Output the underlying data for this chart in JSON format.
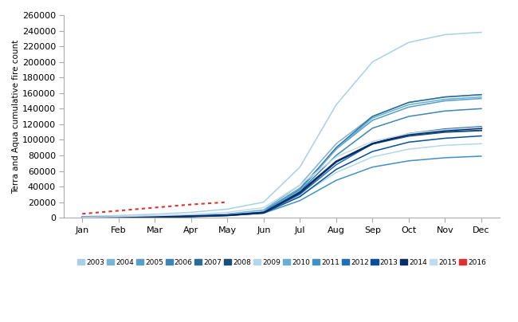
{
  "ylabel": "Terra and Aqua cumulative fire count",
  "ylim": [
    0,
    260000
  ],
  "yticks": [
    0,
    20000,
    40000,
    60000,
    80000,
    100000,
    120000,
    140000,
    160000,
    180000,
    200000,
    220000,
    240000,
    260000
  ],
  "months": [
    "Jan",
    "Feb",
    "Mar",
    "Apr",
    "May",
    "Jun",
    "Jul",
    "Aug",
    "Sep",
    "Oct",
    "Nov",
    "Dec"
  ],
  "year_styles": {
    "2003": {
      "color": "#a8d0e8",
      "lw": 1.1,
      "ls": "solid"
    },
    "2004": {
      "color": "#78b4d4",
      "lw": 1.1,
      "ls": "solid"
    },
    "2005": {
      "color": "#55a0c5",
      "lw": 1.1,
      "ls": "solid"
    },
    "2006": {
      "color": "#3d87b2",
      "lw": 1.1,
      "ls": "solid"
    },
    "2007": {
      "color": "#2a6d9a",
      "lw": 1.1,
      "ls": "solid"
    },
    "2008": {
      "color": "#1a4f7a",
      "lw": 1.5,
      "ls": "solid"
    },
    "2009": {
      "color": "#b0d8ec",
      "lw": 1.1,
      "ls": "solid"
    },
    "2010": {
      "color": "#6aaed6",
      "lw": 1.1,
      "ls": "solid"
    },
    "2011": {
      "color": "#4191c5",
      "lw": 1.1,
      "ls": "solid"
    },
    "2012": {
      "color": "#2070b4",
      "lw": 1.1,
      "ls": "solid"
    },
    "2013": {
      "color": "#08509b",
      "lw": 1.1,
      "ls": "solid"
    },
    "2014": {
      "color": "#082f6a",
      "lw": 1.8,
      "ls": "solid"
    },
    "2015": {
      "color": "#c5daea",
      "lw": 1.1,
      "ls": "solid"
    },
    "2016": {
      "color": "#e03030",
      "lw": 1.5,
      "ls": "dotted"
    }
  },
  "data": {
    "2003": [
      1500,
      2800,
      4500,
      7000,
      11000,
      20000,
      65000,
      145000,
      200000,
      225000,
      235000,
      238000
    ],
    "2004": [
      500,
      1000,
      1800,
      3000,
      5000,
      10000,
      42000,
      95000,
      130000,
      148000,
      155000,
      158000
    ],
    "2005": [
      500,
      1000,
      1800,
      2800,
      4500,
      9000,
      38000,
      88000,
      125000,
      142000,
      150000,
      153000
    ],
    "2006": [
      400,
      900,
      1500,
      2500,
      4000,
      8000,
      34000,
      80000,
      115000,
      130000,
      137000,
      140000
    ],
    "2007": [
      400,
      800,
      1400,
      2300,
      3800,
      7500,
      36000,
      90000,
      130000,
      148000,
      155000,
      158000
    ],
    "2008": [
      300,
      700,
      1200,
      2000,
      3500,
      7000,
      33000,
      72000,
      95000,
      105000,
      110000,
      112000
    ],
    "2009": [
      500,
      1000,
      1700,
      2800,
      4500,
      8500,
      28000,
      58000,
      78000,
      88000,
      93000,
      95000
    ],
    "2010": [
      400,
      800,
      1400,
      2200,
      3600,
      7200,
      35000,
      88000,
      128000,
      145000,
      152000,
      155000
    ],
    "2011": [
      300,
      600,
      1100,
      1800,
      3000,
      5800,
      22000,
      48000,
      65000,
      73000,
      77000,
      79000
    ],
    "2012": [
      300,
      700,
      1200,
      2000,
      3400,
      6800,
      30000,
      68000,
      95000,
      108000,
      114000,
      117000
    ],
    "2013": [
      250,
      550,
      1000,
      1700,
      2900,
      6000,
      27000,
      62000,
      85000,
      97000,
      102000,
      105000
    ],
    "2014": [
      300,
      600,
      1100,
      1800,
      3100,
      6500,
      32000,
      72000,
      95000,
      107000,
      112000,
      115000
    ],
    "2015": [
      700,
      1500,
      2600,
      4200,
      7000,
      13000,
      42000,
      78000,
      98000,
      108000,
      113000,
      116000
    ],
    "2016": [
      5000,
      9000,
      13000,
      17000,
      20000,
      null,
      null,
      null,
      null,
      null,
      null,
      null
    ]
  }
}
